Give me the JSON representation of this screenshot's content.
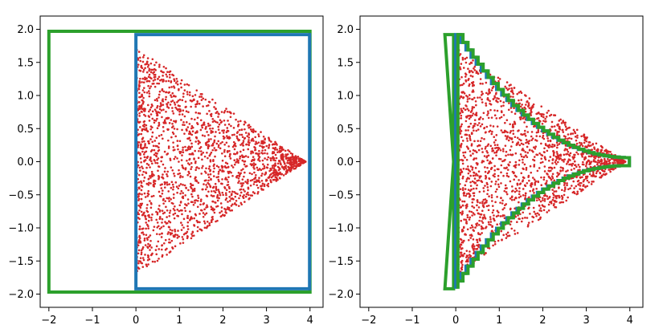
{
  "chart_data": [
    {
      "type": "scatter",
      "panel": "left",
      "title": "",
      "xlabel": "",
      "ylabel": "",
      "xlim": [
        -2.2,
        4.3
      ],
      "ylim": [
        -2.2,
        2.2
      ],
      "xticks": [
        -2,
        -1,
        0,
        1,
        2,
        3,
        4
      ],
      "xtick_labels": [
        "−2",
        "−1",
        "0",
        "1",
        "2",
        "3",
        "4"
      ],
      "yticks": [
        -2.0,
        -1.5,
        -1.0,
        -0.5,
        0.0,
        0.5,
        1.0,
        1.5,
        2.0
      ],
      "ytick_labels": [
        "−2.0",
        "−1.5",
        "−1.0",
        "−0.5",
        "0.0",
        "0.5",
        "1.0",
        "1.5",
        "2.0"
      ],
      "grid": false,
      "scatter": {
        "color": "#d62728",
        "point_count": 2000,
        "shape": "triangle",
        "apex": [
          3.9,
          0.0
        ],
        "base_x": 0.0,
        "base_half_height": 1.72
      },
      "boxes": [
        {
          "name": "green-box",
          "color": "#2ca02c",
          "points": [
            [
              -2.0,
              -1.97
            ],
            [
              4.0,
              -1.97
            ],
            [
              4.0,
              1.97
            ],
            [
              -2.0,
              1.97
            ]
          ]
        },
        {
          "name": "blue-box",
          "color": "#1f77b4",
          "points": [
            [
              0.0,
              -1.92
            ],
            [
              3.99,
              -1.92
            ],
            [
              3.99,
              1.92
            ],
            [
              0.0,
              1.92
            ]
          ]
        }
      ]
    },
    {
      "type": "scatter",
      "panel": "right",
      "title": "",
      "xlabel": "",
      "ylabel": "",
      "xlim": [
        -2.2,
        4.3
      ],
      "ylim": [
        -2.2,
        2.2
      ],
      "xticks": [
        -2,
        -1,
        0,
        1,
        2,
        3,
        4
      ],
      "xtick_labels": [
        "−2",
        "−1",
        "0",
        "1",
        "2",
        "3",
        "4"
      ],
      "yticks": [
        -2.0,
        -1.5,
        -1.0,
        -0.5,
        0.0,
        0.5,
        1.0,
        1.5,
        2.0
      ],
      "ytick_labels": [
        "−2.0",
        "−1.5",
        "−1.0",
        "−0.5",
        "0.0",
        "0.5",
        "1.0",
        "1.5",
        "2.0"
      ],
      "grid": false,
      "scatter": {
        "color": "#d62728",
        "point_count": 2000,
        "shape": "triangle",
        "apex": [
          3.9,
          0.0
        ],
        "base_x": 0.0,
        "base_half_height": 1.72
      },
      "boxes": [
        {
          "name": "green-polygon",
          "color": "#2ca02c",
          "points": [
            [
              -0.25,
              1.92
            ],
            [
              -0.05,
              1.92
            ],
            [
              -0.05,
              0.0
            ],
            [
              -0.05,
              -1.92
            ],
            [
              -0.25,
              -1.92
            ],
            [
              -0.05,
              0.0
            ]
          ]
        },
        {
          "name": "blue-staircase",
          "color": "#1f77b4",
          "profile": "staircase",
          "left_x": 0.0,
          "top_y": 1.92,
          "tip_x": 3.99,
          "tip_half_height": 0.06,
          "steps": 34
        },
        {
          "name": "green-staircase",
          "color": "#2ca02c",
          "profile": "staircase-inner",
          "left_x": 0.05,
          "top_y": 1.92,
          "tip_x": 3.99,
          "tip_half_height": 0.06,
          "steps": 34
        }
      ]
    }
  ]
}
